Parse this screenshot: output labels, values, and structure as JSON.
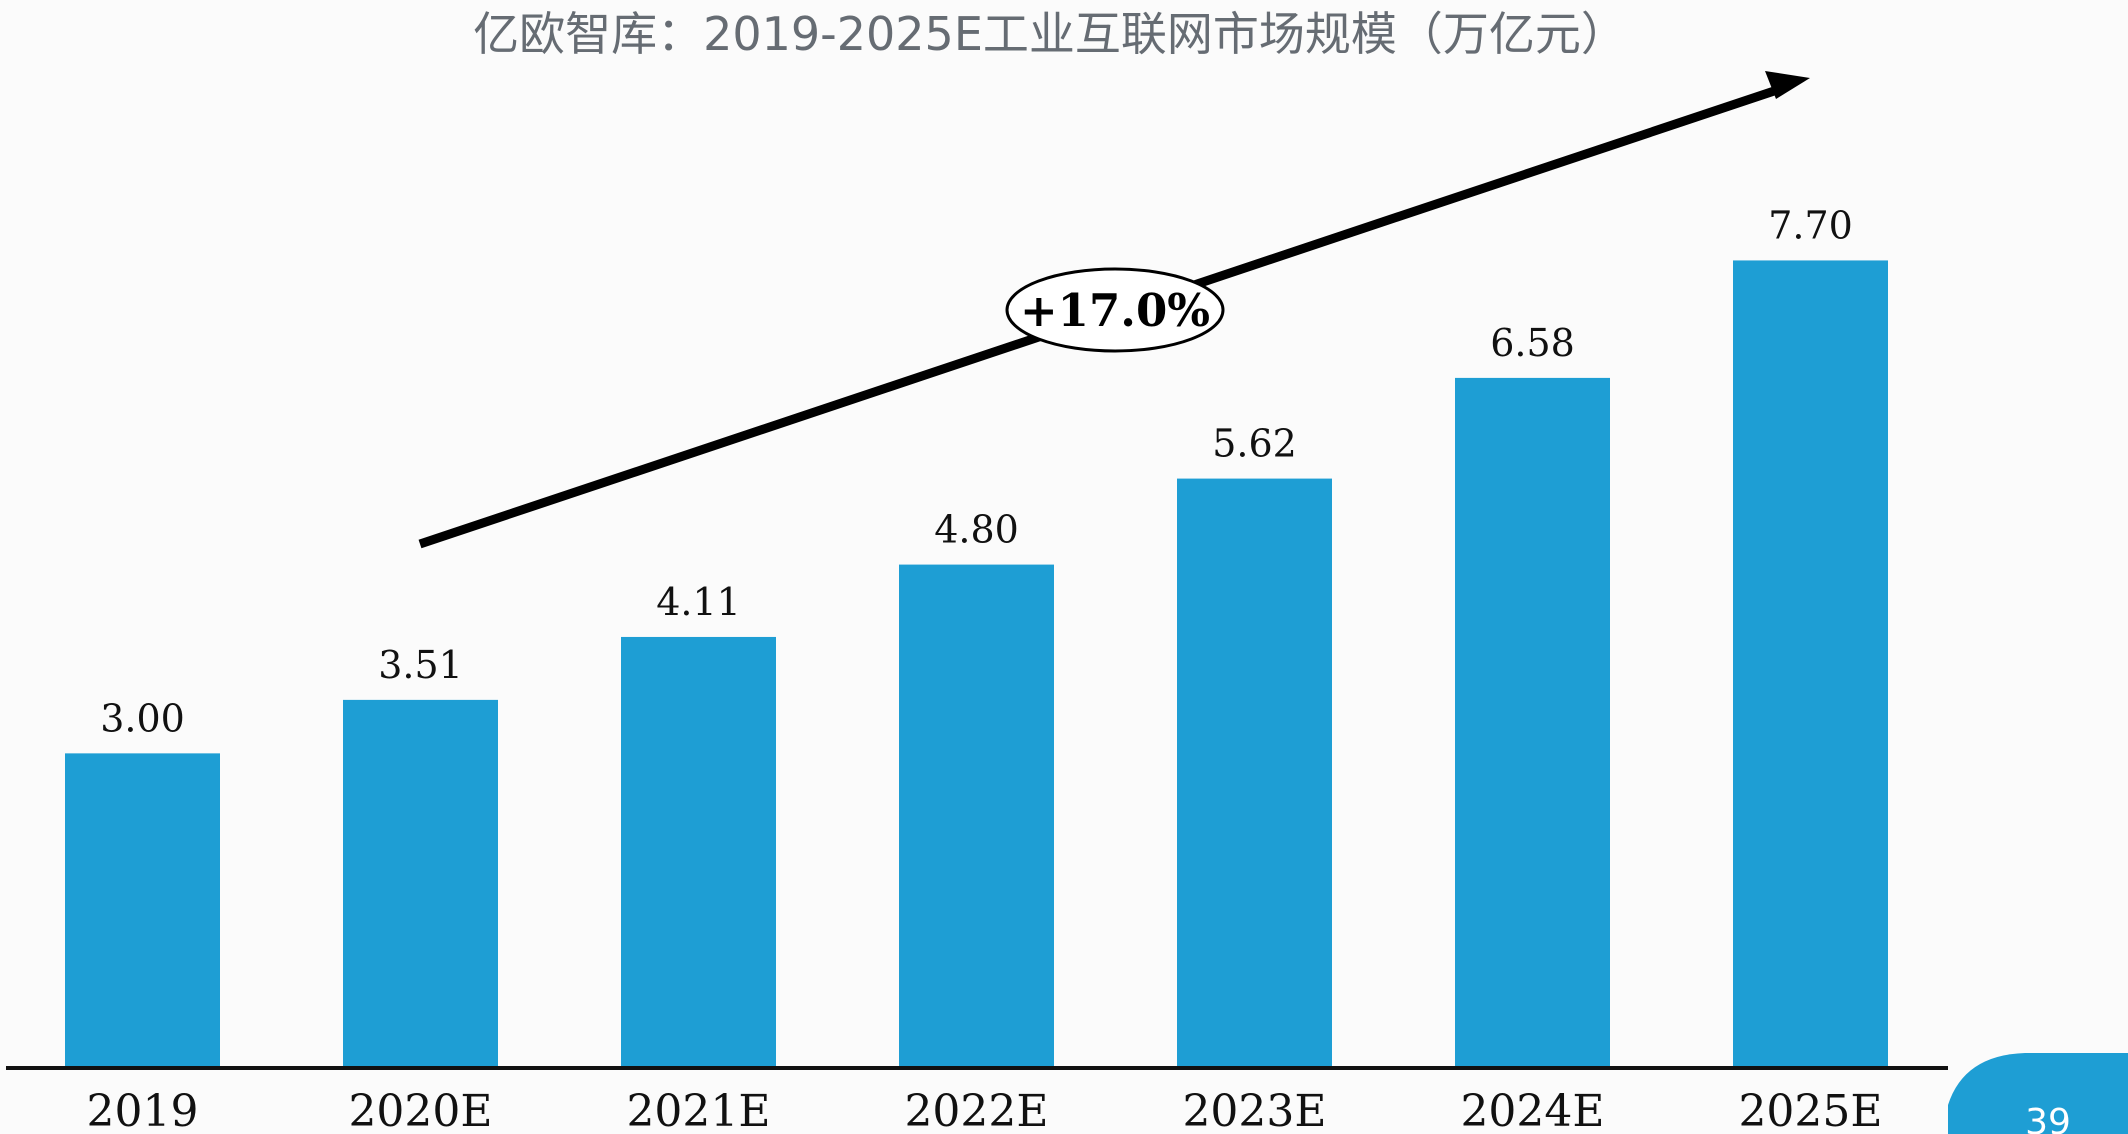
{
  "chart_data": {
    "type": "bar",
    "title": "亿欧智库：2019-2025E工业互联网市场规模（万亿元）",
    "categories": [
      "2019",
      "2020E",
      "2021E",
      "2022E",
      "2023E",
      "2024E",
      "2025E"
    ],
    "values": [
      3.0,
      3.51,
      4.11,
      4.8,
      5.62,
      6.58,
      7.7
    ],
    "value_labels": [
      "3.00",
      "3.51",
      "4.11",
      "4.80",
      "5.62",
      "6.58",
      "7.70"
    ],
    "ylim": [
      0,
      8.2
    ],
    "grid": false,
    "legend": false,
    "annotation": {
      "label": "+17.0%",
      "type": "trend-arrow"
    },
    "colors": {
      "bar": "#1e9ed4",
      "axis": "#111111",
      "page_badge": "#1e9ed4"
    }
  },
  "page_number": "39"
}
